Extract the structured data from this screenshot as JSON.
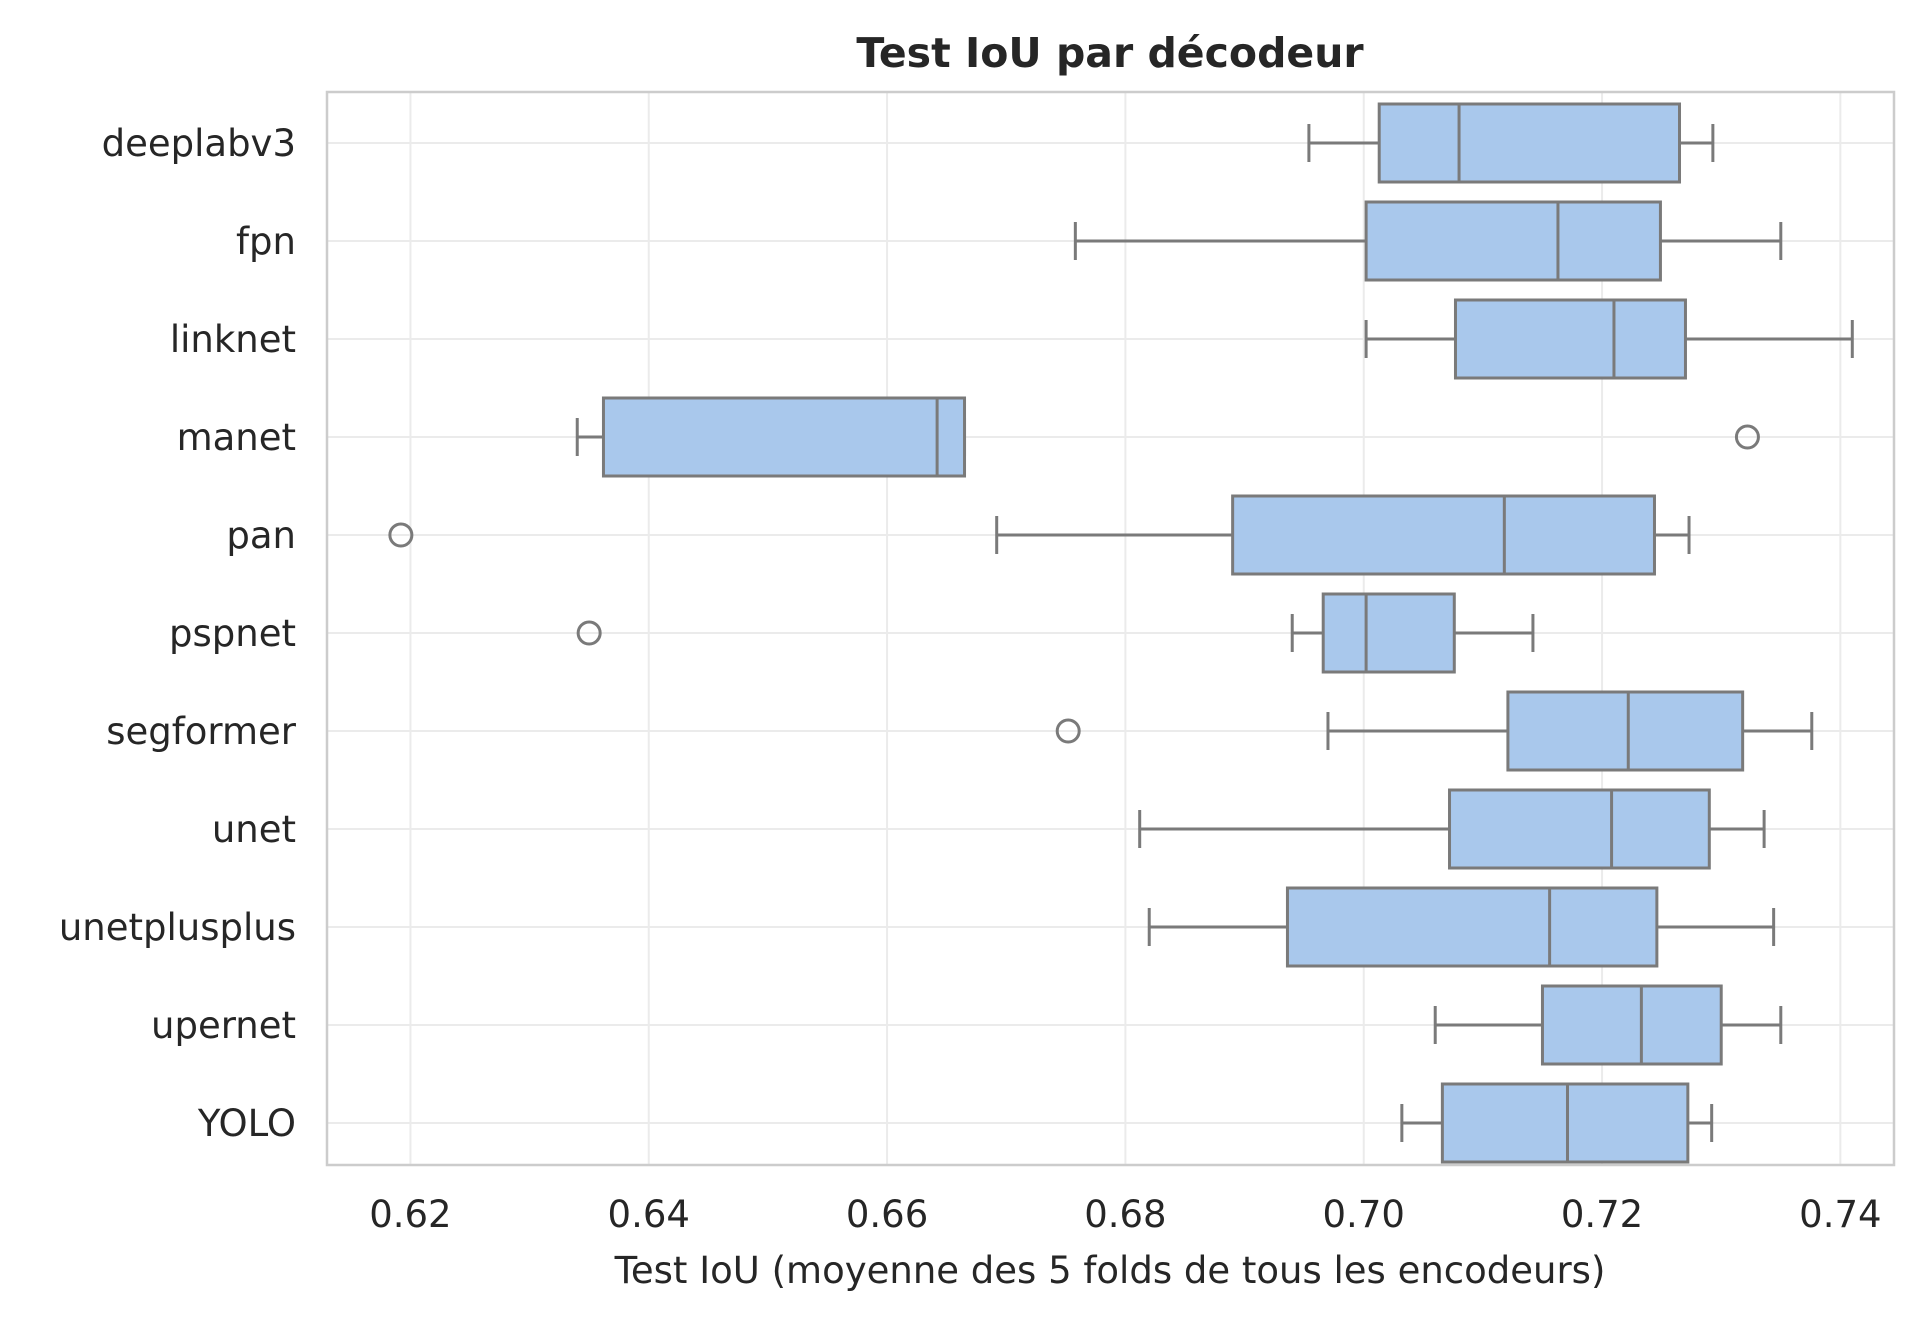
{
  "chart_data": {
    "type": "boxplot",
    "orientation": "horizontal",
    "title": "Test IoU par décodeur",
    "xlabel": "Test IoU (moyenne des 5 folds de tous les encodeurs)",
    "ylabel": "",
    "xlim": [
      0.613,
      0.7445
    ],
    "xticks": [
      0.62,
      0.64,
      0.66,
      0.68,
      0.7,
      0.72,
      0.74
    ],
    "xtick_labels": [
      "0.62",
      "0.64",
      "0.66",
      "0.68",
      "0.70",
      "0.72",
      "0.74"
    ],
    "grid": true,
    "colors": {
      "box_fill": "#a9c8ec",
      "line": "#7a7a7a",
      "grid": "#ebebeb",
      "frame": "#cccccc"
    },
    "categories": [
      "deeplabv3",
      "fpn",
      "linknet",
      "manet",
      "pan",
      "pspnet",
      "segformer",
      "unet",
      "unetplusplus",
      "upernet",
      "YOLO"
    ],
    "boxes": [
      {
        "name": "deeplabv3",
        "whislo": 0.6954,
        "q1": 0.7013,
        "med": 0.708,
        "q3": 0.7265,
        "whishi": 0.7293,
        "fliers": []
      },
      {
        "name": "fpn",
        "whislo": 0.6758,
        "q1": 0.7002,
        "med": 0.7163,
        "q3": 0.7249,
        "whishi": 0.735,
        "fliers": []
      },
      {
        "name": "linknet",
        "whislo": 0.7002,
        "q1": 0.7077,
        "med": 0.721,
        "q3": 0.727,
        "whishi": 0.741,
        "fliers": []
      },
      {
        "name": "manet",
        "whislo": 0.634,
        "q1": 0.6362,
        "med": 0.6642,
        "q3": 0.6665,
        "whishi": 0.6665,
        "fliers": [
          0.7322
        ]
      },
      {
        "name": "pan",
        "whislo": 0.6692,
        "q1": 0.689,
        "med": 0.7118,
        "q3": 0.7244,
        "whishi": 0.7273,
        "fliers": [
          0.6192
        ]
      },
      {
        "name": "pspnet",
        "whislo": 0.694,
        "q1": 0.6966,
        "med": 0.7002,
        "q3": 0.7076,
        "whishi": 0.7142,
        "fliers": [
          0.635
        ]
      },
      {
        "name": "segformer",
        "whislo": 0.697,
        "q1": 0.7121,
        "med": 0.7222,
        "q3": 0.7318,
        "whishi": 0.7376,
        "fliers": [
          0.6752
        ]
      },
      {
        "name": "unet",
        "whislo": 0.6812,
        "q1": 0.7072,
        "med": 0.7208,
        "q3": 0.729,
        "whishi": 0.7336,
        "fliers": []
      },
      {
        "name": "unetplusplus",
        "whislo": 0.682,
        "q1": 0.6936,
        "med": 0.7156,
        "q3": 0.7246,
        "whishi": 0.7344,
        "fliers": []
      },
      {
        "name": "upernet",
        "whislo": 0.706,
        "q1": 0.715,
        "med": 0.7233,
        "q3": 0.73,
        "whishi": 0.735,
        "fliers": []
      },
      {
        "name": "YOLO",
        "whislo": 0.7032,
        "q1": 0.7066,
        "med": 0.7171,
        "q3": 0.7272,
        "whishi": 0.7292,
        "fliers": []
      }
    ]
  }
}
